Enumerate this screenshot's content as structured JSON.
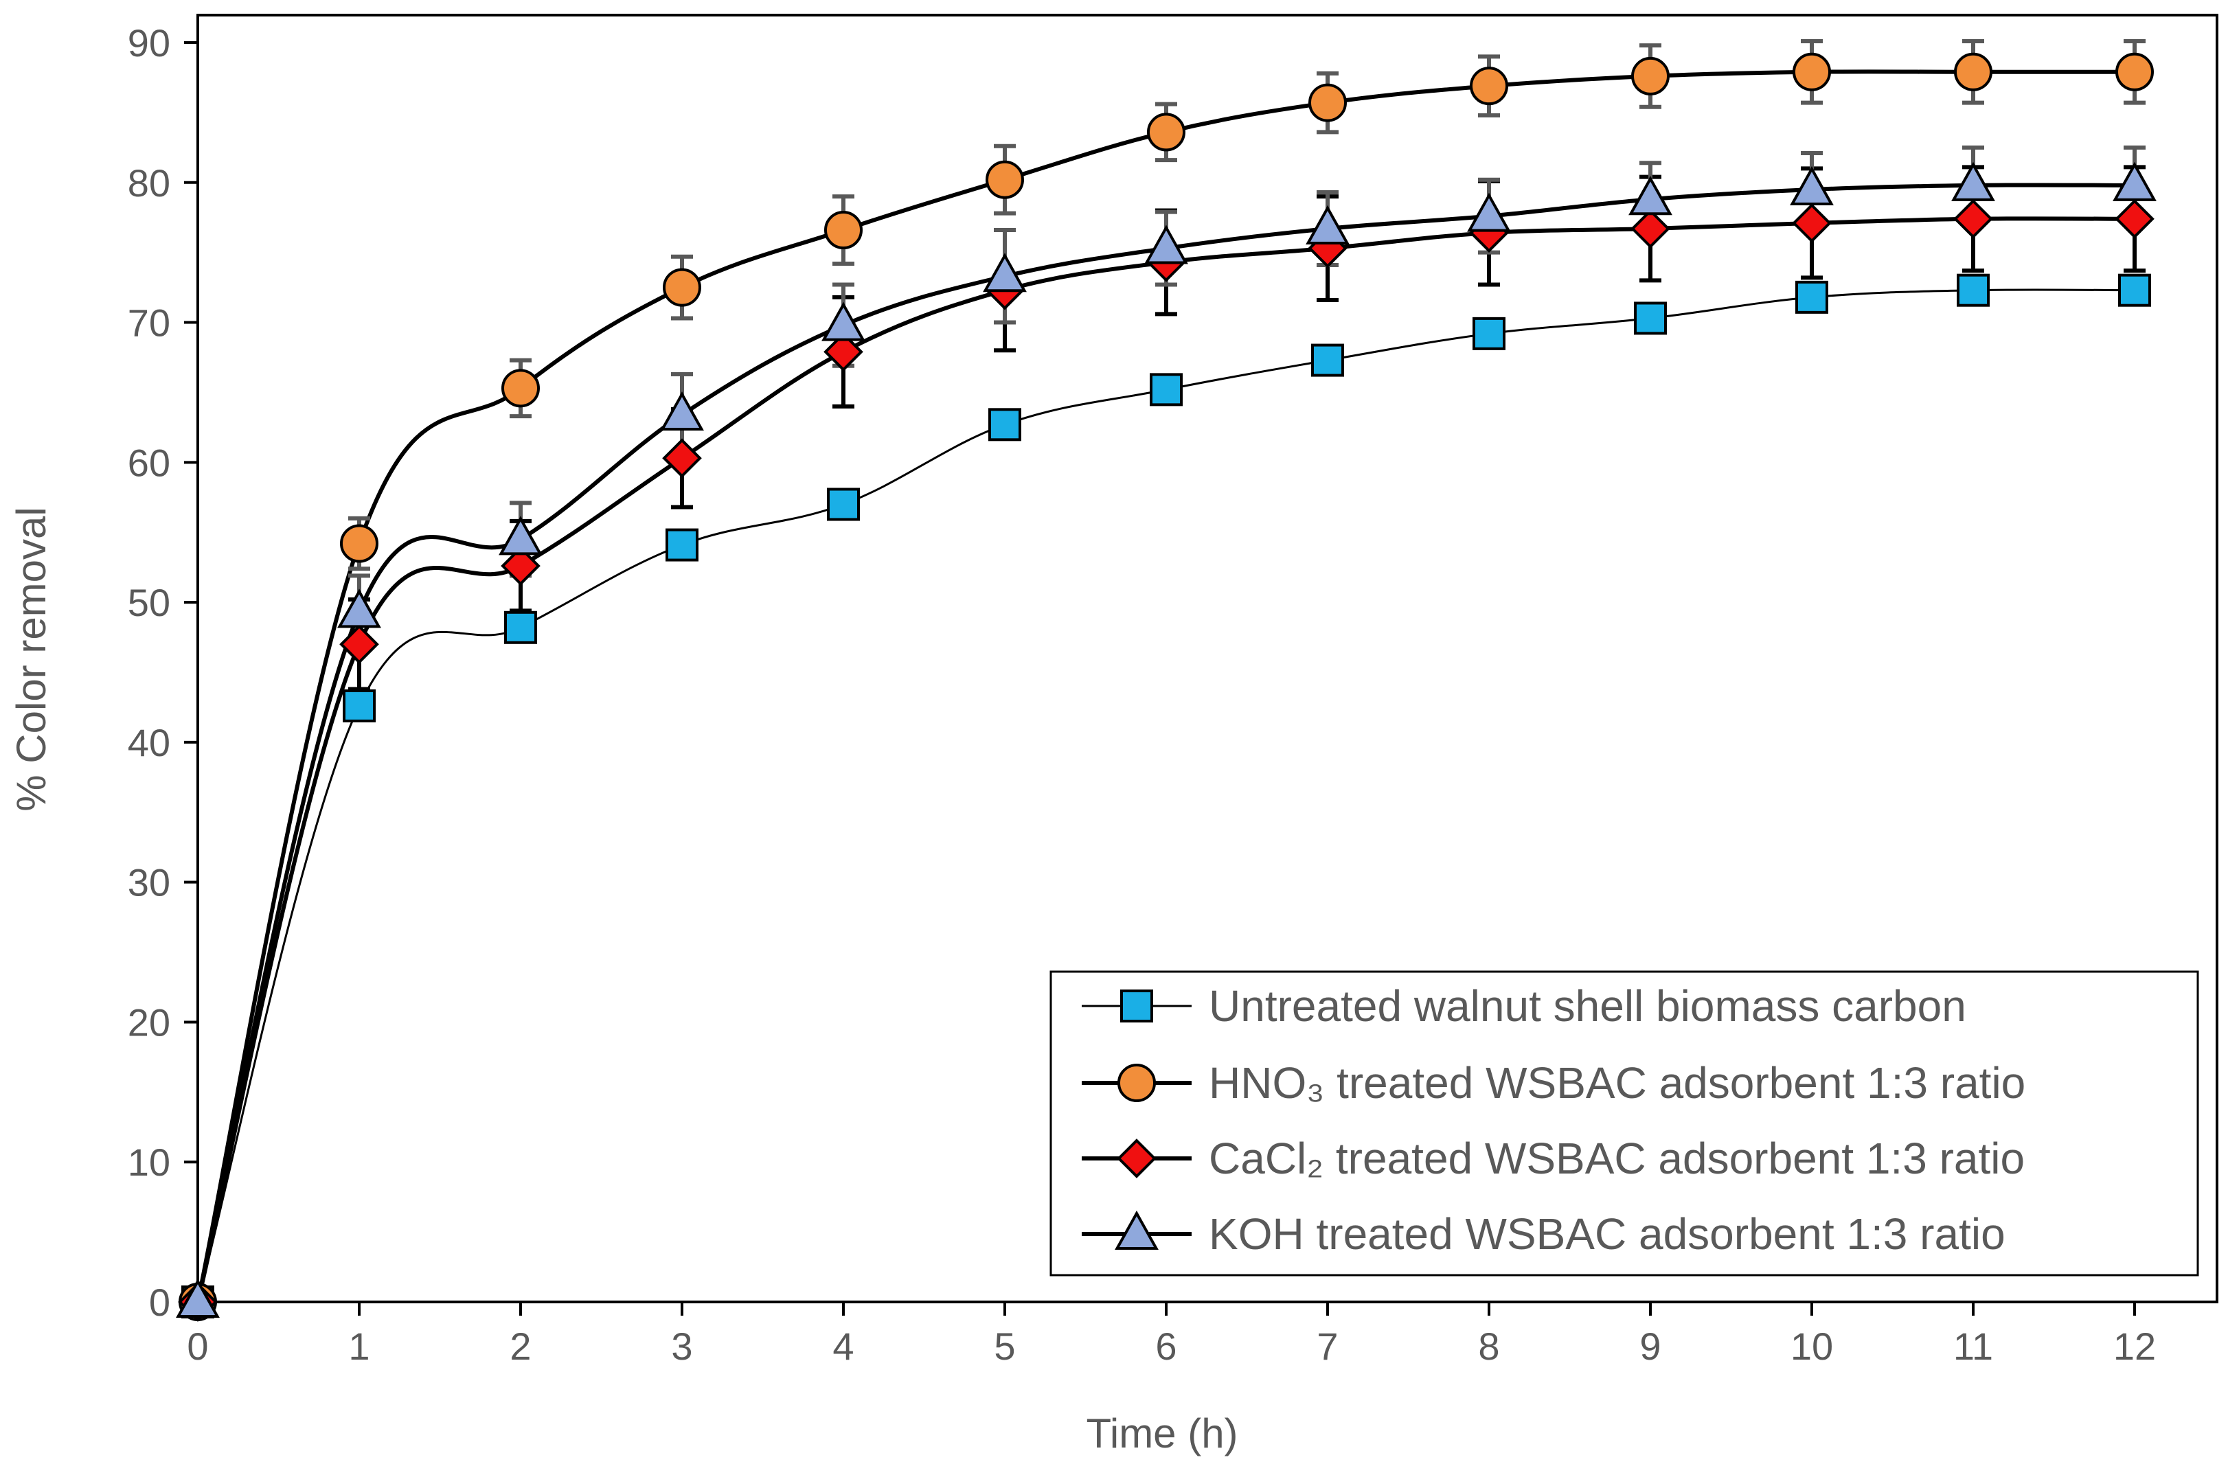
{
  "chart_data": {
    "type": "line",
    "title": "",
    "xlabel": "Time (h)",
    "ylabel": "% Color removal",
    "xlim": [
      0,
      12
    ],
    "ylim": [
      0,
      90
    ],
    "x_ticks": [
      "0",
      "1",
      "2",
      "3",
      "4",
      "5",
      "6",
      "7",
      "8",
      "9",
      "10",
      "11",
      "12"
    ],
    "y_ticks": [
      "0",
      "10",
      "20",
      "30",
      "40",
      "50",
      "60",
      "70",
      "80",
      "90"
    ],
    "grid": false,
    "legend_position": "bottom-right",
    "x": [
      0,
      1,
      2,
      3,
      4,
      5,
      6,
      7,
      8,
      9,
      10,
      11,
      12
    ],
    "series": [
      {
        "name": "Untreated walnut shell biomass carbon",
        "marker": "square",
        "color": "#1AAFE6",
        "line_color": "#000000",
        "line_width": "thin",
        "values": [
          0,
          42.6,
          48.2,
          54.1,
          57.0,
          62.7,
          65.2,
          67.3,
          69.2,
          70.3,
          71.8,
          72.3,
          72.3
        ],
        "error": null
      },
      {
        "name": "HNO₃ treated WSBAC adsorbent 1:3 ratio",
        "marker": "circle",
        "color": "#F28E3A",
        "line_color": "#000000",
        "line_width": "thick",
        "values": [
          0,
          54.2,
          65.3,
          72.5,
          76.6,
          80.2,
          83.6,
          85.7,
          86.9,
          87.6,
          87.9,
          87.9,
          87.9
        ],
        "error": [
          0,
          1.8,
          2.0,
          2.2,
          2.4,
          2.4,
          2.0,
          2.1,
          2.1,
          2.2,
          2.2,
          2.2,
          2.2
        ]
      },
      {
        "name": "CaCl₂ treated WSBAC adsorbent 1:3 ratio",
        "marker": "diamond",
        "color": "#F01010",
        "line_color": "#000000",
        "line_width": "thick",
        "values": [
          0,
          47.0,
          52.6,
          60.3,
          67.9,
          72.3,
          74.3,
          75.3,
          76.4,
          76.7,
          77.1,
          77.4,
          77.4
        ],
        "error": [
          0,
          3.2,
          3.2,
          3.5,
          3.9,
          4.3,
          3.7,
          3.7,
          3.7,
          3.7,
          3.9,
          3.7,
          3.7
        ]
      },
      {
        "name": "KOH treated WSBAC adsorbent 1:3 ratio",
        "marker": "triangle",
        "color": "#8FA8DC",
        "line_color": "#000000",
        "line_width": "thick",
        "values": [
          0,
          49.3,
          54.5,
          63.4,
          69.8,
          73.3,
          75.3,
          76.7,
          77.6,
          78.8,
          79.5,
          79.8,
          79.8
        ],
        "error": [
          0,
          2.6,
          2.6,
          2.9,
          2.9,
          3.3,
          2.6,
          2.6,
          2.6,
          2.6,
          2.6,
          2.7,
          2.7
        ]
      }
    ]
  }
}
